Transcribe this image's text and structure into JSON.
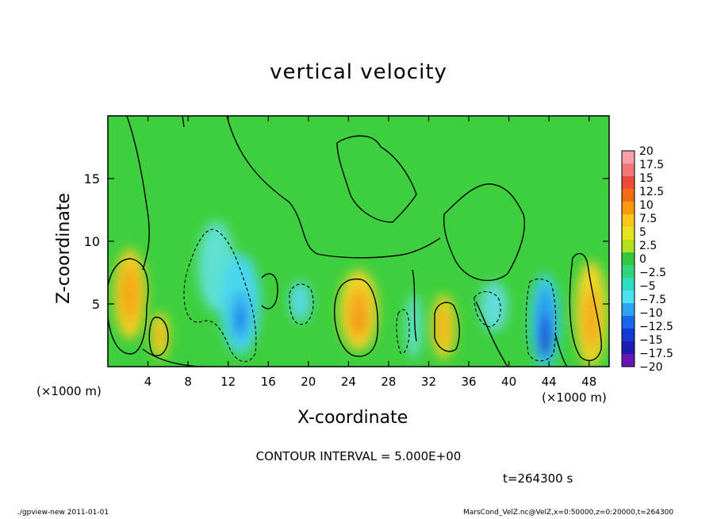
{
  "chart_data": {
    "type": "heatmap",
    "title": "vertical velocity",
    "xlabel": "X-coordinate",
    "ylabel": "Z-coordinate",
    "x_unit_label": "(×1000 m)",
    "x_ticks": [
      4,
      8,
      12,
      16,
      20,
      24,
      28,
      32,
      36,
      40,
      44,
      48
    ],
    "y_ticks": [
      5,
      10,
      15
    ],
    "xlim": [
      0,
      50
    ],
    "ylim": [
      0,
      20
    ],
    "colorbar_labels": [
      "20",
      "17.5",
      "15",
      "12.5",
      "10",
      "7.5",
      "5",
      "2.5",
      "0",
      "−2.5",
      "−5",
      "−7.5",
      "−10",
      "−12.5",
      "−15",
      "−17.5",
      "−20"
    ],
    "colorbar_colors": [
      "#f7a0a8",
      "#f27878",
      "#ee4a3c",
      "#f26c12",
      "#f79a10",
      "#f7c61c",
      "#e6e21e",
      "#b2e01c",
      "#34c63c",
      "#32d47a",
      "#2cdcc0",
      "#4ce0f0",
      "#2ca6f2",
      "#1a66ee",
      "#1238d6",
      "#1c1cb0",
      "#6814b6"
    ],
    "background_color": "#3ecf3e",
    "annotation": "CONTOUR INTERVAL = 5.000E+00",
    "time_label": "t=264300 s",
    "footer_left": "./gpview-new   2011-01-01",
    "footer_right": "MarsCond_VelZ.nc@VelZ,x=0:50000,z=0:20000,t=264300",
    "blobs": [
      {
        "x": 2.2,
        "z": 5.8,
        "rx": 1.6,
        "rz": 3.6,
        "color": "#f2ce22"
      },
      {
        "x": 2.2,
        "z": 5.8,
        "rx": 0.9,
        "rz": 2.2,
        "color": "#f4a818"
      },
      {
        "x": 5.2,
        "z": 2.5,
        "rx": 0.9,
        "rz": 1.8,
        "color": "#f2d424"
      },
      {
        "x": 5.2,
        "z": 2.5,
        "rx": 0.45,
        "rz": 0.9,
        "color": "#f2b01c"
      },
      {
        "x": 10.8,
        "z": 8.0,
        "rx": 1.8,
        "rz": 3.6,
        "color": "#5fe0d0"
      },
      {
        "x": 13.2,
        "z": 5.0,
        "rx": 2.0,
        "rz": 4.0,
        "color": "#4ad6ec"
      },
      {
        "x": 13.2,
        "z": 4.0,
        "rx": 0.9,
        "rz": 2.0,
        "color": "#2ea8ee"
      },
      {
        "x": 13.2,
        "z": 3.8,
        "rx": 0.35,
        "rz": 0.9,
        "color": "#1c62e6"
      },
      {
        "x": 19.2,
        "z": 5.2,
        "rx": 1.1,
        "rz": 1.6,
        "color": "#56d8e0"
      },
      {
        "x": 25.0,
        "z": 4.5,
        "rx": 1.9,
        "rz": 3.2,
        "color": "#f2d426"
      },
      {
        "x": 25.0,
        "z": 4.2,
        "rx": 1.1,
        "rz": 2.0,
        "color": "#f2a81c"
      },
      {
        "x": 25.0,
        "z": 3.6,
        "rx": 0.3,
        "rz": 0.6,
        "color": "#ee7a12"
      },
      {
        "x": 30.5,
        "z": 3.2,
        "rx": 0.8,
        "rz": 2.6,
        "color": "#5ee0c4"
      },
      {
        "x": 33.5,
        "z": 3.2,
        "rx": 1.2,
        "rz": 2.6,
        "color": "#e8d220"
      },
      {
        "x": 33.5,
        "z": 3.2,
        "rx": 0.6,
        "rz": 1.5,
        "color": "#f2b21c"
      },
      {
        "x": 38.5,
        "z": 4.8,
        "rx": 1.4,
        "rz": 2.0,
        "color": "#62dcd8"
      },
      {
        "x": 43.6,
        "z": 3.6,
        "rx": 1.5,
        "rz": 3.8,
        "color": "#3ed0ec"
      },
      {
        "x": 43.6,
        "z": 3.4,
        "rx": 0.9,
        "rz": 3.0,
        "color": "#2a96f0"
      },
      {
        "x": 43.6,
        "z": 2.4,
        "rx": 0.6,
        "rz": 1.8,
        "color": "#1c48de"
      },
      {
        "x": 43.6,
        "z": 1.8,
        "rx": 0.35,
        "rz": 0.8,
        "color": "#1a26b8"
      },
      {
        "x": 48.2,
        "z": 4.2,
        "rx": 1.6,
        "rz": 4.2,
        "color": "#f2d426"
      },
      {
        "x": 48.2,
        "z": 3.8,
        "rx": 0.8,
        "rz": 2.4,
        "color": "#f2ac1c"
      }
    ]
  }
}
